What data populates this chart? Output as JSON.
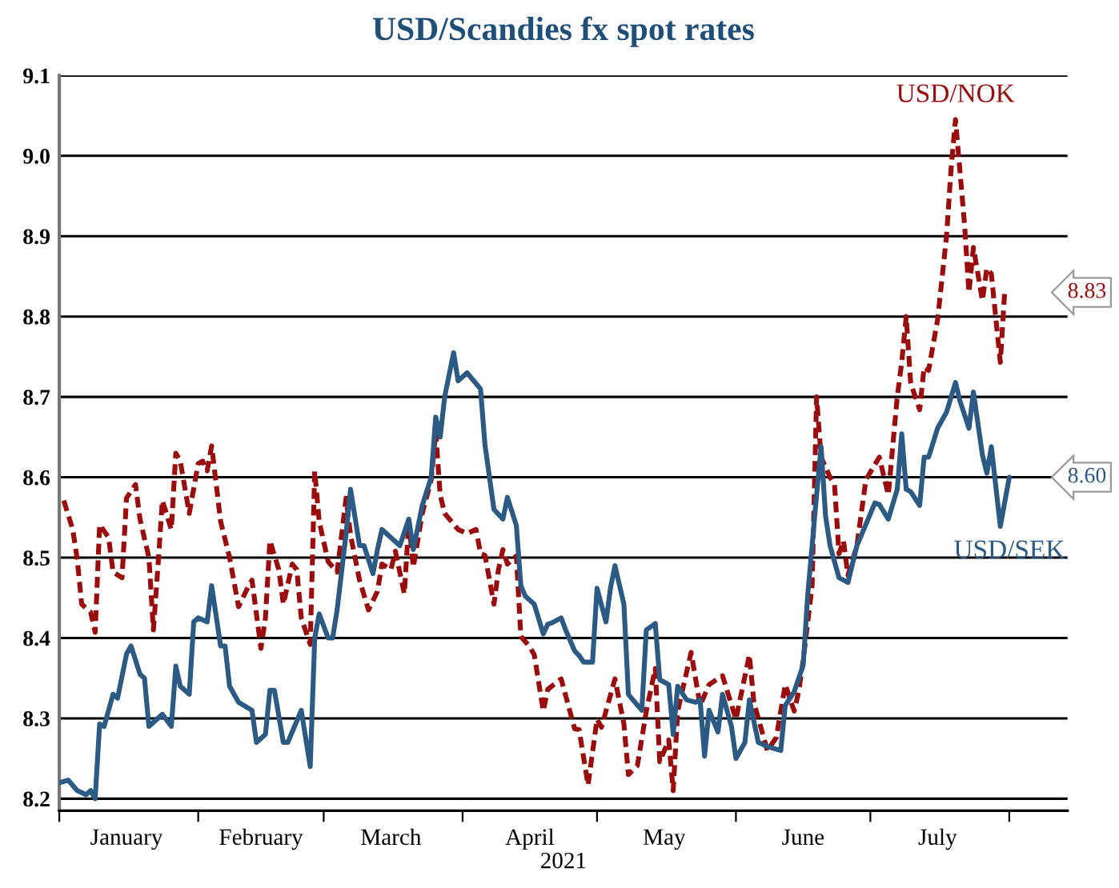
{
  "chart_data": {
    "type": "line",
    "title": "USD/Scandies fx spot rates",
    "xlabel": "2021",
    "xlim": [
      "2021-01-01",
      "2021-08-14"
    ],
    "ylim": [
      8.185,
      9.1
    ],
    "yticks": [
      {
        "value": 8.2,
        "label": "8.2"
      },
      {
        "value": 8.3,
        "label": "8.3"
      },
      {
        "value": 8.4,
        "label": "8.4"
      },
      {
        "value": 8.5,
        "label": "8.5"
      },
      {
        "value": 8.6,
        "label": "8.6"
      },
      {
        "value": 8.7,
        "label": "8.7"
      },
      {
        "value": 8.8,
        "label": "8.8"
      },
      {
        "value": 8.9,
        "label": "8.9"
      },
      {
        "value": 9.0,
        "label": "9.0"
      },
      {
        "value": 9.1,
        "label": "9.1"
      }
    ],
    "xticks": [
      {
        "value": "2021-01-01",
        "label": null
      },
      {
        "value": "2021-01-16",
        "label": "January"
      },
      {
        "value": "2021-02-01",
        "label": null
      },
      {
        "value": "2021-02-15",
        "label": "February"
      },
      {
        "value": "2021-03-01",
        "label": null
      },
      {
        "value": "2021-03-16",
        "label": "March"
      },
      {
        "value": "2021-04-01",
        "label": null
      },
      {
        "value": "2021-04-16",
        "label": "April"
      },
      {
        "value": "2021-05-01",
        "label": null
      },
      {
        "value": "2021-05-16",
        "label": "May"
      },
      {
        "value": "2021-06-01",
        "label": null
      },
      {
        "value": "2021-06-16",
        "label": "June"
      },
      {
        "value": "2021-07-01",
        "label": null
      },
      {
        "value": "2021-07-16",
        "label": "July"
      },
      {
        "value": "2021-08-01",
        "label": null
      }
    ],
    "grid": "y",
    "legend": false,
    "marker": "none",
    "annotations": [
      {
        "text": "8.83",
        "x": "2021-07-31",
        "y": 8.83
      },
      {
        "text": "8.60",
        "x": "2021-08-01",
        "y": 8.6
      }
    ],
    "series": [
      {
        "name": "USD/NOK",
        "color": "#9b0d0d",
        "line_style": "dashed",
        "x": [
          "2021-01-02",
          "2021-01-04",
          "2021-01-05",
          "2021-01-06",
          "2021-01-08",
          "2021-01-09",
          "2021-01-10",
          "2021-01-12",
          "2021-01-13",
          "2021-01-15",
          "2021-01-16",
          "2021-01-18",
          "2021-01-19",
          "2021-01-21",
          "2021-01-22",
          "2021-01-23",
          "2021-01-24",
          "2021-01-26",
          "2021-01-27",
          "2021-01-28",
          "2021-01-30",
          "2021-02-01",
          "2021-02-02",
          "2021-02-03",
          "2021-02-04",
          "2021-02-06",
          "2021-02-08",
          "2021-02-10",
          "2021-02-12",
          "2021-02-13",
          "2021-02-15",
          "2021-02-16",
          "2021-02-17",
          "2021-02-19",
          "2021-02-20",
          "2021-02-22",
          "2021-02-23",
          "2021-02-24",
          "2021-02-26",
          "2021-02-27",
          "2021-02-28",
          "2021-03-02",
          "2021-03-04",
          "2021-03-06",
          "2021-03-07",
          "2021-03-09",
          "2021-03-11",
          "2021-03-13",
          "2021-03-14",
          "2021-03-16",
          "2021-03-17",
          "2021-03-19",
          "2021-03-20",
          "2021-03-21",
          "2021-03-23",
          "2021-03-25",
          "2021-03-26",
          "2021-03-27",
          "2021-03-28",
          "2021-03-31",
          "2021-04-02",
          "2021-04-04",
          "2021-04-05",
          "2021-04-06",
          "2021-04-08",
          "2021-04-09",
          "2021-04-10",
          "2021-04-11",
          "2021-04-13",
          "2021-04-14",
          "2021-04-16",
          "2021-04-17",
          "2021-04-19",
          "2021-04-20",
          "2021-04-23",
          "2021-04-26",
          "2021-04-27",
          "2021-04-29",
          "2021-05-01",
          "2021-05-02",
          "2021-05-05",
          "2021-05-07",
          "2021-05-08",
          "2021-05-10",
          "2021-05-12",
          "2021-05-14",
          "2021-05-15",
          "2021-05-17",
          "2021-05-18",
          "2021-05-19",
          "2021-05-22",
          "2021-05-24",
          "2021-05-26",
          "2021-05-29",
          "2021-06-01",
          "2021-06-04",
          "2021-06-05",
          "2021-06-08",
          "2021-06-10",
          "2021-06-12",
          "2021-06-14",
          "2021-06-15",
          "2021-06-16",
          "2021-06-18",
          "2021-06-19",
          "2021-06-20",
          "2021-06-22",
          "2021-06-23",
          "2021-06-24",
          "2021-06-25",
          "2021-06-26",
          "2021-06-28",
          "2021-06-30",
          "2021-07-03",
          "2021-07-05",
          "2021-07-07",
          "2021-07-08",
          "2021-07-09",
          "2021-07-10",
          "2021-07-12",
          "2021-07-13",
          "2021-07-14",
          "2021-07-16",
          "2021-07-18",
          "2021-07-19",
          "2021-07-20",
          "2021-07-22",
          "2021-07-23",
          "2021-07-24",
          "2021-07-26",
          "2021-07-27",
          "2021-07-28",
          "2021-07-30",
          "2021-07-31"
        ],
        "values": [
          8.571,
          8.535,
          8.498,
          8.442,
          8.432,
          8.407,
          8.541,
          8.525,
          8.482,
          8.475,
          8.574,
          8.591,
          8.548,
          8.5,
          8.41,
          8.488,
          8.571,
          8.535,
          8.63,
          8.62,
          8.555,
          8.617,
          8.62,
          8.608,
          8.639,
          8.545,
          8.5,
          8.439,
          8.462,
          8.472,
          8.387,
          8.425,
          8.521,
          8.485,
          8.442,
          8.492,
          8.485,
          8.425,
          8.392,
          8.608,
          8.545,
          8.495,
          8.482,
          8.574,
          8.528,
          8.472,
          8.435,
          8.458,
          8.492,
          8.485,
          8.508,
          8.455,
          8.545,
          8.488,
          8.555,
          8.597,
          8.656,
          8.578,
          8.555,
          8.535,
          8.53,
          8.535,
          8.505,
          8.503,
          8.442,
          8.485,
          8.51,
          8.492,
          8.502,
          8.402,
          8.389,
          8.379,
          8.309,
          8.336,
          8.349,
          8.287,
          8.286,
          8.217,
          8.299,
          8.289,
          8.349,
          8.293,
          8.23,
          8.241,
          8.309,
          8.362,
          8.246,
          8.273,
          8.21,
          8.309,
          8.382,
          8.316,
          8.342,
          8.353,
          8.299,
          8.379,
          8.32,
          8.26,
          8.276,
          8.342,
          8.309,
          8.333,
          8.372,
          8.465,
          8.7,
          8.625,
          8.6,
          8.591,
          8.505,
          8.521,
          8.478,
          8.515,
          8.597,
          8.625,
          8.578,
          8.7,
          8.743,
          8.8,
          8.717,
          8.684,
          8.737,
          8.733,
          8.796,
          8.9,
          8.983,
          9.045,
          8.916,
          8.83,
          8.886,
          8.82,
          8.86,
          8.853,
          8.743,
          8.833
        ]
      },
      {
        "name": "USD/SEK",
        "color": "#2b5a84",
        "line_style": "solid",
        "x": [
          "2021-01-01",
          "2021-01-03",
          "2021-01-05",
          "2021-01-07",
          "2021-01-08",
          "2021-01-09",
          "2021-01-10",
          "2021-01-11",
          "2021-01-13",
          "2021-01-14",
          "2021-01-16",
          "2021-01-17",
          "2021-01-19",
          "2021-01-20",
          "2021-01-21",
          "2021-01-24",
          "2021-01-26",
          "2021-01-27",
          "2021-01-28",
          "2021-01-30",
          "2021-01-31",
          "2021-02-01",
          "2021-02-03",
          "2021-02-04",
          "2021-02-06",
          "2021-02-07",
          "2021-02-08",
          "2021-02-10",
          "2021-02-13",
          "2021-02-14",
          "2021-02-16",
          "2021-02-17",
          "2021-02-18",
          "2021-02-20",
          "2021-02-21",
          "2021-02-24",
          "2021-02-26",
          "2021-02-27",
          "2021-02-28",
          "2021-03-02",
          "2021-03-03",
          "2021-03-04",
          "2021-03-06",
          "2021-03-07",
          "2021-03-09",
          "2021-03-10",
          "2021-03-12",
          "2021-03-13",
          "2021-03-14",
          "2021-03-16",
          "2021-03-18",
          "2021-03-20",
          "2021-03-21",
          "2021-03-23",
          "2021-03-25",
          "2021-03-26",
          "2021-03-27",
          "2021-03-28",
          "2021-03-30",
          "2021-03-31",
          "2021-04-02",
          "2021-04-05",
          "2021-04-06",
          "2021-04-08",
          "2021-04-10",
          "2021-04-11",
          "2021-04-13",
          "2021-04-14",
          "2021-04-15",
          "2021-04-17",
          "2021-04-19",
          "2021-04-20",
          "2021-04-21",
          "2021-04-23",
          "2021-04-24",
          "2021-04-26",
          "2021-04-27",
          "2021-04-28",
          "2021-04-30",
          "2021-05-01",
          "2021-05-03",
          "2021-05-04",
          "2021-05-05",
          "2021-05-07",
          "2021-05-08",
          "2021-05-09",
          "2021-05-11",
          "2021-05-12",
          "2021-05-14",
          "2021-05-15",
          "2021-05-17",
          "2021-05-18",
          "2021-05-19",
          "2021-05-21",
          "2021-05-23",
          "2021-05-24",
          "2021-05-25",
          "2021-05-26",
          "2021-05-28",
          "2021-05-29",
          "2021-05-31",
          "2021-06-01",
          "2021-06-03",
          "2021-06-04",
          "2021-06-06",
          "2021-06-08",
          "2021-06-11",
          "2021-06-12",
          "2021-06-14",
          "2021-06-16",
          "2021-06-17",
          "2021-06-19",
          "2021-06-20",
          "2021-06-21",
          "2021-06-22",
          "2021-06-24",
          "2021-06-26",
          "2021-06-28",
          "2021-06-29",
          "2021-07-02",
          "2021-07-03",
          "2021-07-05",
          "2021-07-07",
          "2021-07-08",
          "2021-07-09",
          "2021-07-10",
          "2021-07-12",
          "2021-07-13",
          "2021-07-14",
          "2021-07-16",
          "2021-07-18",
          "2021-07-20",
          "2021-07-21",
          "2021-07-23",
          "2021-07-24",
          "2021-07-26",
          "2021-07-27",
          "2021-07-28",
          "2021-07-30",
          "2021-08-01"
        ],
        "values": [
          8.22,
          8.223,
          8.21,
          8.205,
          8.21,
          8.2,
          8.293,
          8.29,
          8.33,
          8.325,
          8.38,
          8.39,
          8.355,
          8.35,
          8.29,
          8.305,
          8.29,
          8.365,
          8.34,
          8.33,
          8.42,
          8.425,
          8.42,
          8.465,
          8.39,
          8.39,
          8.34,
          8.32,
          8.31,
          8.27,
          8.28,
          8.335,
          8.335,
          8.27,
          8.27,
          8.31,
          8.24,
          8.4,
          8.43,
          8.4,
          8.4,
          8.435,
          8.53,
          8.585,
          8.515,
          8.515,
          8.48,
          8.51,
          8.535,
          8.525,
          8.515,
          8.548,
          8.51,
          8.565,
          8.6,
          8.675,
          8.65,
          8.7,
          8.755,
          8.72,
          8.73,
          8.71,
          8.64,
          8.56,
          8.548,
          8.575,
          8.54,
          8.465,
          8.452,
          8.442,
          8.405,
          8.417,
          8.419,
          8.425,
          8.41,
          8.384,
          8.378,
          8.37,
          8.37,
          8.462,
          8.42,
          8.462,
          8.49,
          8.442,
          8.33,
          8.323,
          8.31,
          8.41,
          8.418,
          8.348,
          8.342,
          8.28,
          8.34,
          8.323,
          8.32,
          8.323,
          8.253,
          8.31,
          8.283,
          8.33,
          8.29,
          8.25,
          8.27,
          8.323,
          8.27,
          8.265,
          8.26,
          8.316,
          8.333,
          8.366,
          8.452,
          8.578,
          8.638,
          8.552,
          8.515,
          8.475,
          8.469,
          8.515,
          8.528,
          8.568,
          8.566,
          8.548,
          8.585,
          8.654,
          8.585,
          8.582,
          8.565,
          8.625,
          8.625,
          8.661,
          8.681,
          8.718,
          8.695,
          8.661,
          8.706,
          8.628,
          8.605,
          8.638,
          8.539,
          8.6
        ]
      }
    ]
  }
}
